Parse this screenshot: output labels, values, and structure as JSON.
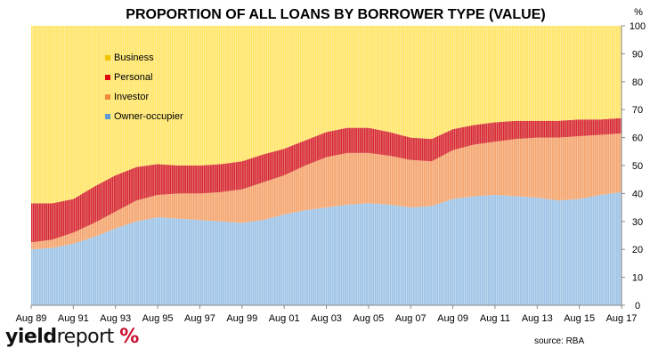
{
  "chart_data": {
    "type": "area",
    "title": "PROPORTION OF ALL LOANS BY BORROWER TYPE (VALUE)",
    "unit_label": "%",
    "ylim": [
      0,
      100
    ],
    "y_ticks": [
      "0",
      "10",
      "20",
      "30",
      "40",
      "50",
      "60",
      "70",
      "80",
      "90",
      "100"
    ],
    "x_ticks": [
      "Aug 89",
      "Aug 91",
      "Aug 93",
      "Aug 95",
      "Aug 97",
      "Aug 99",
      "Aug 01",
      "Aug 03",
      "Aug 05",
      "Aug 07",
      "Aug 09",
      "Aug 11",
      "Aug 13",
      "Aug 15",
      "Aug 17"
    ],
    "x": [
      "Aug 89",
      "Aug 90",
      "Aug 91",
      "Aug 92",
      "Aug 93",
      "Aug 94",
      "Aug 95",
      "Aug 96",
      "Aug 97",
      "Aug 98",
      "Aug 99",
      "Aug 00",
      "Aug 01",
      "Aug 02",
      "Aug 03",
      "Aug 04",
      "Aug 05",
      "Aug 06",
      "Aug 07",
      "Aug 08",
      "Aug 09",
      "Aug 10",
      "Aug 11",
      "Aug 12",
      "Aug 13",
      "Aug 14",
      "Aug 15",
      "Aug 16",
      "Aug 17"
    ],
    "stacked": true,
    "series": [
      {
        "name": "Owner-occupier",
        "color": "#9dc3e6",
        "values": [
          20,
          20.5,
          22,
          24.5,
          27.5,
          30,
          31.5,
          31,
          30.5,
          30,
          29.5,
          30.5,
          32.5,
          34,
          35,
          36,
          36.5,
          36,
          35,
          35.5,
          38,
          39,
          39.5,
          39,
          38.5,
          37.5,
          38,
          39.5,
          40.5
        ]
      },
      {
        "name": "Investor",
        "color": "#f4a46c",
        "values": [
          2.5,
          3,
          4,
          5,
          6,
          7.5,
          8,
          9,
          9.5,
          10.5,
          12,
          13.5,
          14,
          16,
          18,
          18.5,
          18,
          17.5,
          17,
          16,
          17.5,
          18.5,
          19,
          20.5,
          21.5,
          22.5,
          22.5,
          21.5,
          21
        ]
      },
      {
        "name": "Personal",
        "color": "#d6282f",
        "values": [
          14,
          13,
          12,
          13,
          13,
          12,
          11,
          10,
          10,
          10,
          10,
          10,
          9.5,
          9,
          9,
          9,
          9,
          8.5,
          8,
          8,
          7.5,
          7,
          7,
          6.5,
          6,
          6,
          6,
          5.5,
          5.5
        ]
      },
      {
        "name": "Business",
        "color": "#ffe566",
        "values": [
          63.5,
          63.5,
          62,
          57.5,
          53.5,
          50.5,
          49.5,
          50,
          50,
          49.5,
          48.5,
          46,
          44,
          41,
          38,
          36.5,
          36.5,
          38,
          40,
          40.5,
          37,
          35.5,
          34.5,
          34,
          34,
          34,
          33.5,
          33.5,
          33
        ]
      }
    ],
    "legend": [
      "Business",
      "Personal",
      "Investor",
      "Owner-occupier"
    ],
    "legend_position": "top-left",
    "grid": false,
    "source": "source: RBA"
  },
  "branding": {
    "logo_yield": "yield",
    "logo_report": "report",
    "logo_symbol": "%"
  }
}
